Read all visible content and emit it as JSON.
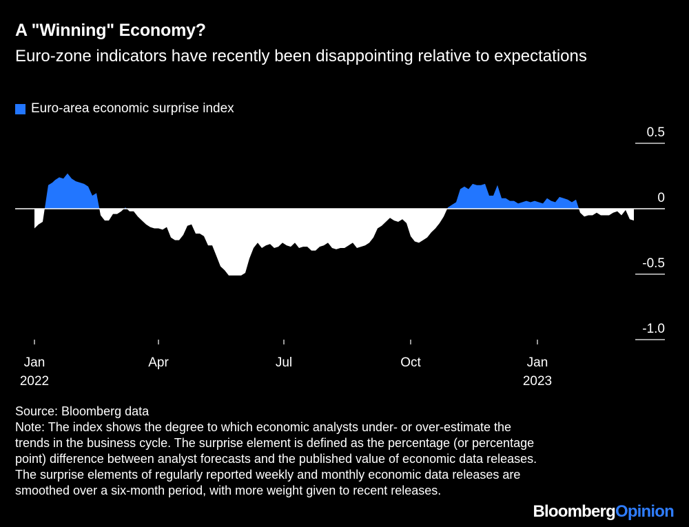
{
  "title": "A \"Winning\" Economy?",
  "subtitle": "Euro-zone indicators have recently been disappointing relative to expectations",
  "legend": {
    "label": "Euro-area economic surprise index",
    "color": "#2276ff"
  },
  "source": "Source: Bloomberg data",
  "note": "Note: The index shows the degree to which economic analysts under- or over-estimate the trends in the business cycle. The surprise element is defined as the percentage (or percentage point) difference between analyst forecasts and the published value of economic data releases. The surprise elements of regularly reported weekly and monthly economic data releases are smoothed over a six-month period, with more weight given to recent releases.",
  "brand": {
    "part1": "Bloomberg",
    "part2": "Opinion"
  },
  "chart_data": {
    "type": "area",
    "title": "Euro-area economic surprise index",
    "ylim": [
      -1.0,
      0.5
    ],
    "y_ticks": [
      0.5,
      0,
      -0.5,
      -1.0
    ],
    "y_tick_labels": [
      "0.5",
      "0",
      "-0.5",
      "-1.0"
    ],
    "x_ticks": [
      {
        "day": 0,
        "label": "Jan",
        "year": "2022"
      },
      {
        "day": 90,
        "label": "Apr",
        "year": ""
      },
      {
        "day": 181,
        "label": "Jul",
        "year": ""
      },
      {
        "day": 273,
        "label": "Oct",
        "year": ""
      },
      {
        "day": 365,
        "label": "Jan",
        "year": "2023"
      }
    ],
    "positive_color": "#2276ff",
    "negative_color": "#ffffff",
    "series": [
      {
        "name": "Euro-area economic surprise index",
        "x": [
          0,
          3,
          6,
          8,
          10,
          13,
          15,
          18,
          21,
          24,
          27,
          30,
          33,
          36,
          39,
          42,
          45,
          48,
          51,
          54,
          57,
          60,
          63,
          66,
          69,
          72,
          75,
          78,
          81,
          84,
          87,
          90,
          93,
          96,
          99,
          102,
          105,
          108,
          111,
          114,
          117,
          120,
          123,
          126,
          129,
          132,
          135,
          138,
          141,
          144,
          147,
          150,
          153,
          156,
          159,
          162,
          165,
          168,
          171,
          174,
          177,
          180,
          183,
          186,
          189,
          192,
          195,
          198,
          201,
          204,
          207,
          210,
          213,
          216,
          219,
          222,
          225,
          228,
          231,
          234,
          237,
          240,
          243,
          246,
          249,
          252,
          255,
          258,
          261,
          264,
          267,
          270,
          273,
          276,
          279,
          282,
          285,
          288,
          291,
          294,
          297,
          300,
          303,
          306,
          309,
          312,
          315,
          318,
          321,
          324,
          327,
          330,
          333,
          336,
          339,
          342,
          345,
          348,
          351,
          354,
          357,
          360,
          363,
          366,
          369,
          372,
          375,
          378,
          381,
          384,
          387,
          390,
          393,
          396,
          399,
          402,
          405,
          408,
          411,
          414,
          417,
          420,
          423,
          426,
          429,
          432,
          435,
          438,
          441,
          444,
          447,
          450,
          453,
          456,
          459
        ],
        "values": [
          -0.15,
          -0.12,
          -0.1,
          0.04,
          0.18,
          0.2,
          0.22,
          0.24,
          0.23,
          0.27,
          0.23,
          0.21,
          0.2,
          0.19,
          0.17,
          0.1,
          0.12,
          -0.05,
          -0.09,
          -0.09,
          -0.04,
          -0.04,
          -0.02,
          0.01,
          -0.02,
          -0.02,
          -0.06,
          -0.09,
          -0.12,
          -0.14,
          -0.15,
          -0.15,
          -0.16,
          -0.14,
          -0.22,
          -0.24,
          -0.24,
          -0.2,
          -0.13,
          -0.12,
          -0.19,
          -0.19,
          -0.21,
          -0.28,
          -0.28,
          -0.36,
          -0.44,
          -0.47,
          -0.51,
          -0.51,
          -0.51,
          -0.51,
          -0.49,
          -0.38,
          -0.3,
          -0.26,
          -0.3,
          -0.28,
          -0.27,
          -0.3,
          -0.29,
          -0.26,
          -0.28,
          -0.29,
          -0.26,
          -0.3,
          -0.29,
          -0.29,
          -0.32,
          -0.32,
          -0.29,
          -0.28,
          -0.26,
          -0.3,
          -0.31,
          -0.3,
          -0.3,
          -0.28,
          -0.26,
          -0.3,
          -0.29,
          -0.28,
          -0.26,
          -0.22,
          -0.15,
          -0.13,
          -0.1,
          -0.07,
          -0.09,
          -0.1,
          -0.08,
          -0.11,
          -0.21,
          -0.25,
          -0.26,
          -0.24,
          -0.22,
          -0.18,
          -0.15,
          -0.11,
          -0.06,
          0.01,
          0.03,
          0.05,
          0.15,
          0.17,
          0.15,
          0.19,
          0.18,
          0.18,
          0.19,
          0.1,
          0.1,
          0.18,
          0.08,
          0.08,
          0.06,
          0.06,
          0.04,
          0.05,
          0.06,
          0.05,
          0.06,
          0.05,
          0.04,
          0.08,
          0.06,
          0.05,
          0.09,
          0.08,
          0.07,
          0.05,
          0.07,
          -0.03,
          -0.06,
          -0.05,
          -0.05,
          -0.03,
          -0.05,
          -0.05,
          -0.05,
          -0.03,
          -0.02,
          -0.05,
          -0.01,
          -0.08,
          -0.09,
          null,
          null,
          null,
          null,
          null,
          null,
          null,
          null
        ]
      }
    ]
  }
}
